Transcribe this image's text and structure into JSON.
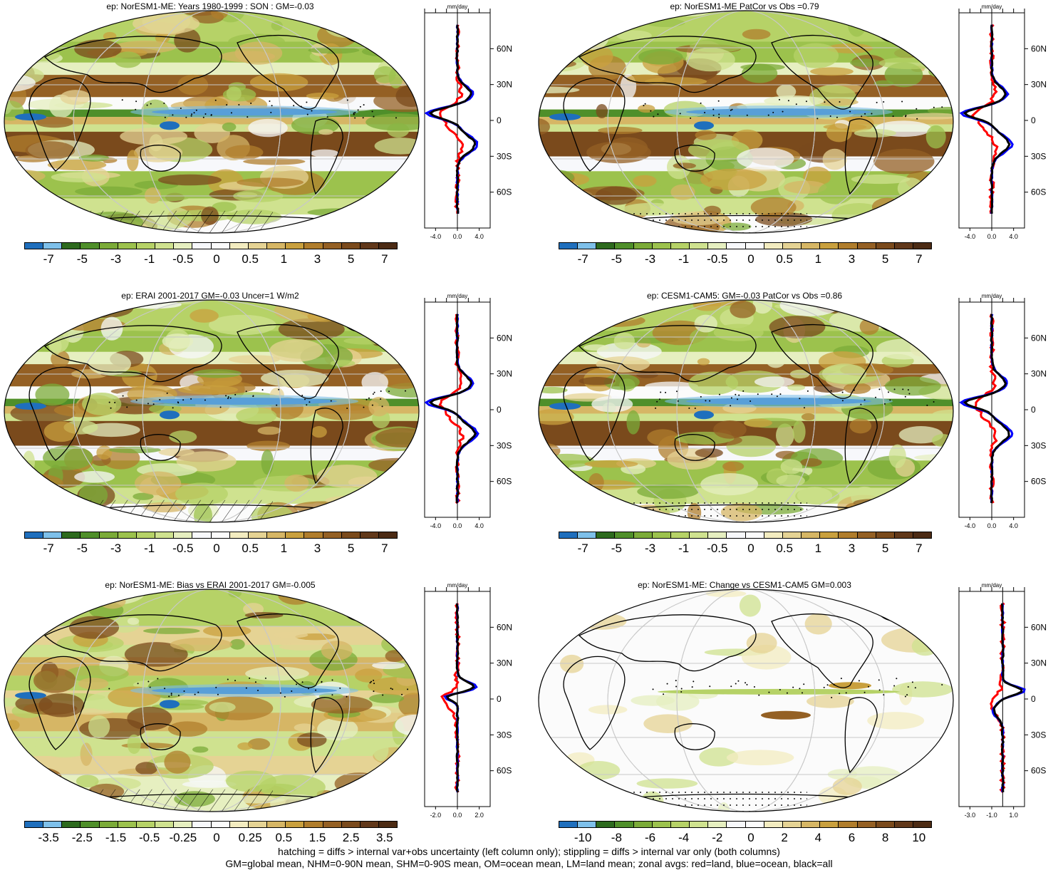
{
  "panels": [
    {
      "title": "ep: NorESM1-ME: Years 1980-1999 : SON : GM=-0.03",
      "zonal_ticks": [
        "-4.0",
        "0.0",
        "4.0"
      ],
      "zonal_range": [
        -6,
        6
      ],
      "hatch": "hatch",
      "variant": "model"
    },
    {
      "title": "ep: NorESM1-ME PatCor vs Obs =0.79",
      "zonal_ticks": [
        "-4.0",
        "0.0",
        "4.0"
      ],
      "zonal_range": [
        -6,
        6
      ],
      "hatch": "stipple",
      "variant": "model"
    },
    {
      "title": "ep: ERAI 2001-2017 GM=-0.03 Uncer=1 W/m2",
      "zonal_ticks": [
        "-4.0",
        "0.0",
        "4.0"
      ],
      "zonal_range": [
        -6,
        6
      ],
      "hatch": "hatch",
      "variant": "obs"
    },
    {
      "title": "ep: CESM1-CAM5: GM=-0.03 PatCor vs Obs =0.86",
      "zonal_ticks": [
        "-4.0",
        "0.0",
        "4.0"
      ],
      "zonal_range": [
        -6,
        6
      ],
      "hatch": "stipple",
      "variant": "model2"
    },
    {
      "title": "ep: NorESM1-ME: Bias vs ERAI 2001-2017  GM=-0.005",
      "zonal_ticks": [
        "-2.0",
        "0.0",
        "2.0"
      ],
      "zonal_range": [
        -3,
        3
      ],
      "hatch": "hatch",
      "variant": "bias"
    },
    {
      "title": "ep: NorESM1-ME: Change vs CESM1-CAM5 GM=0.003",
      "zonal_ticks": [
        "-3.0",
        "-1.0",
        "1.0"
      ],
      "zonal_range": [
        -4,
        2
      ],
      "hatch": "stipple",
      "variant": "change"
    }
  ],
  "zonal_unit": "mm/day",
  "lat_labels": [
    "60N",
    "30N",
    "0",
    "30S",
    "60S"
  ],
  "colorbars": {
    "full": [
      "-7",
      "-5",
      "-3",
      "-1",
      "-0.5",
      "0",
      "0.5",
      "1",
      "3",
      "5",
      "7"
    ],
    "bias": [
      "-3.5",
      "-2.5",
      "-1.5",
      "-0.5",
      "-0.25",
      "0",
      "0.25",
      "0.5",
      "1.5",
      "2.5",
      "3.5"
    ],
    "change": [
      "-10",
      "-8",
      "-6",
      "-4",
      "-2",
      "0",
      "2",
      "4",
      "6",
      "8",
      "10"
    ]
  },
  "palette": [
    "#1f6fbd",
    "#7ec0ea",
    "#2d6a1e",
    "#4f8f2a",
    "#7bab38",
    "#9cc24d",
    "#b6d267",
    "#cfe28f",
    "#e6efc0",
    "#f7f8fb",
    "#fbfbfb",
    "#f3ecc0",
    "#e5d394",
    "#d6b665",
    "#c9a03e",
    "#b07d2c",
    "#946024",
    "#7a4a1c",
    "#61381a",
    "#4c2b14"
  ],
  "footer": {
    "line1": "hatching = diffs > internal var+obs uncertainty (left column only); stippling = diffs > internal var only (both columns)",
    "line2": "GM=global mean, NHM=0-90N mean, SHM=0-90S mean, OM=ocean mean, LM=land mean; zonal avgs: red=land, blue=ocean, black=all"
  },
  "series_colors": {
    "land": "#ff0000",
    "ocean": "#0000ff",
    "all": "#000000"
  }
}
